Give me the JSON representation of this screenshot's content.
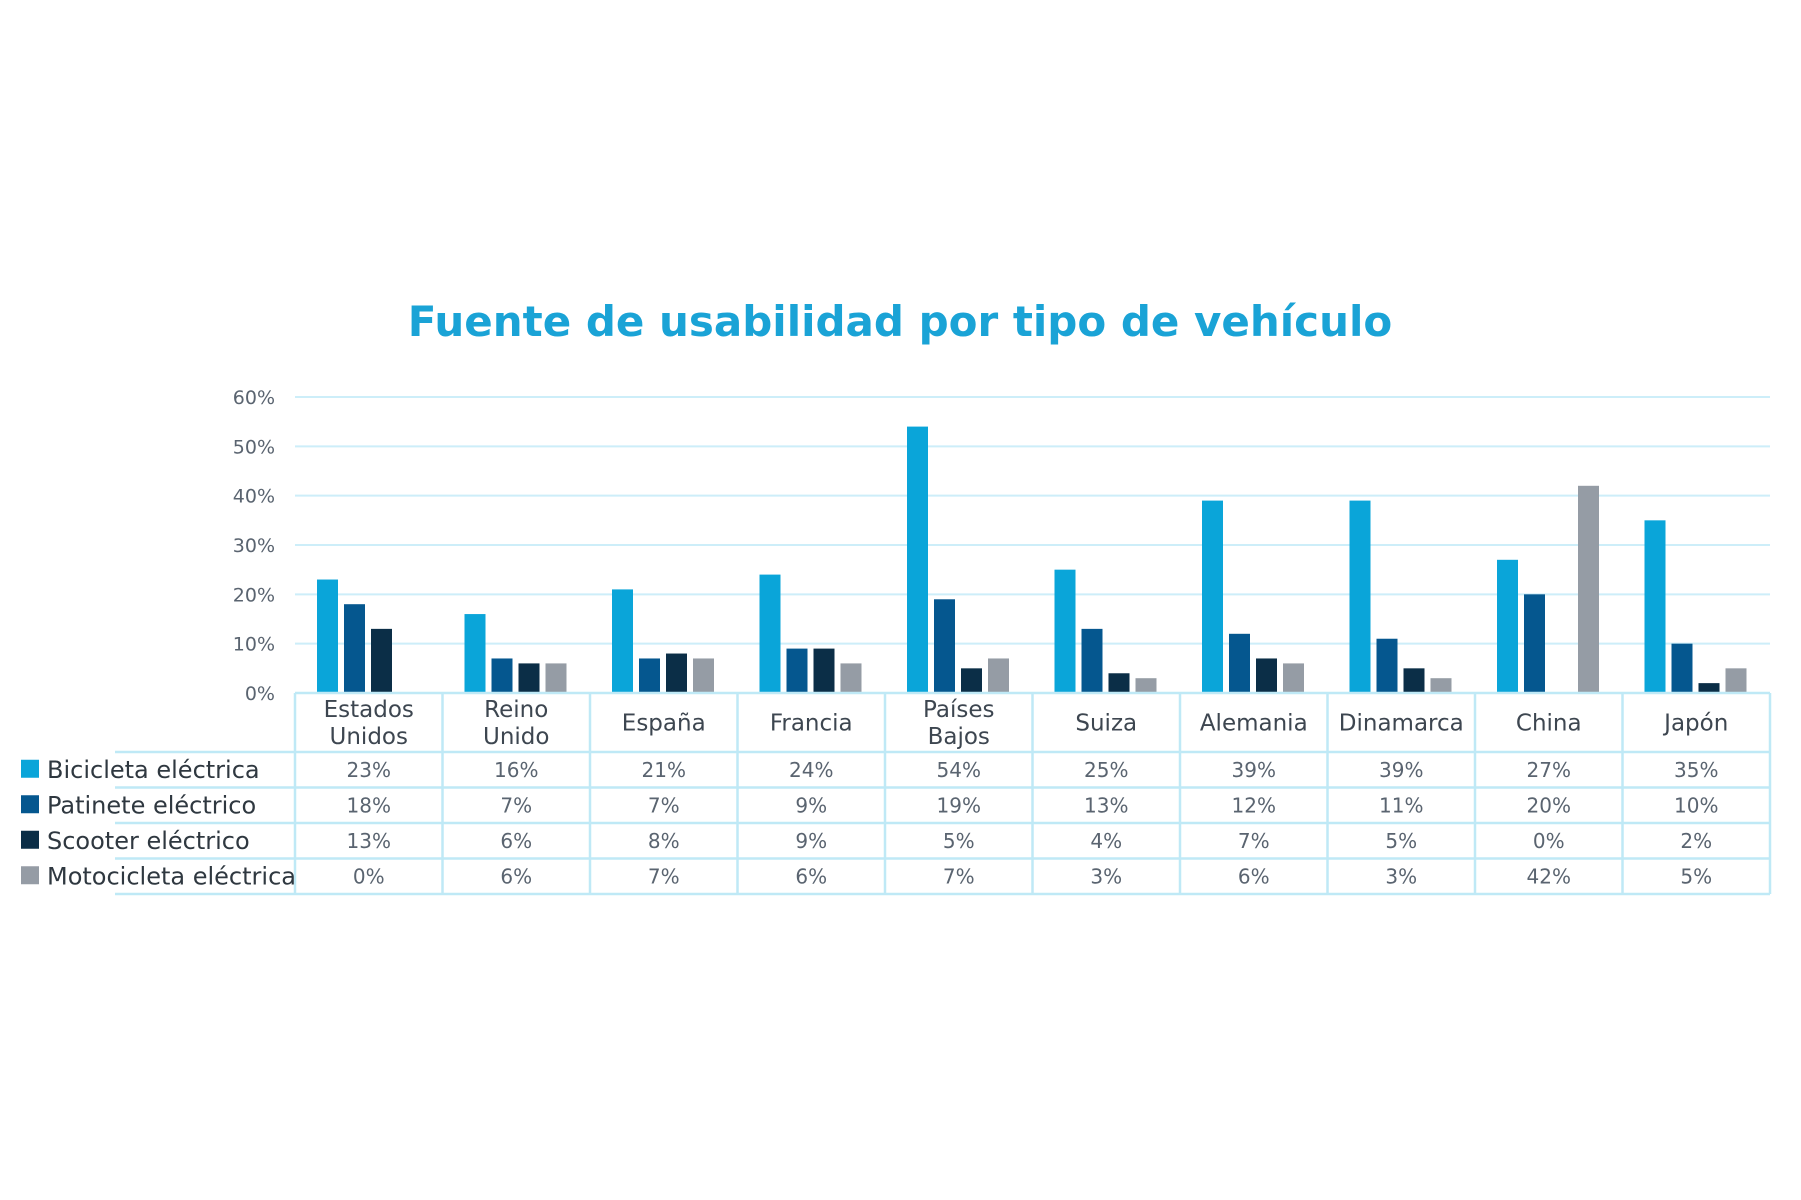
{
  "chart_data": {
    "type": "bar",
    "title": "Fuente de usabilidad por tipo de vehículo",
    "categories": [
      [
        "Estados",
        "Unidos"
      ],
      [
        "Reino",
        "Unido"
      ],
      [
        "España"
      ],
      [
        "Francia"
      ],
      [
        "Países",
        "Bajos"
      ],
      [
        "Suiza"
      ],
      [
        "Alemania"
      ],
      [
        "Dinamarca"
      ],
      [
        "China"
      ],
      [
        "Japón"
      ]
    ],
    "y_ticks": [
      "0%",
      "10%",
      "20%",
      "30%",
      "40%",
      "50%",
      "60%"
    ],
    "ylim": [
      0,
      60
    ],
    "grid": true,
    "legend": "data-table-left",
    "series": [
      {
        "name": "Bicicleta eléctrica",
        "color": "#0aa5d9",
        "values": [
          23,
          16,
          21,
          24,
          54,
          25,
          39,
          39,
          27,
          35
        ],
        "labels": [
          "23%",
          "16%",
          "21%",
          "24%",
          "54%",
          "25%",
          "39%",
          "39%",
          "27%",
          "35%"
        ]
      },
      {
        "name": "Patinete eléctrico",
        "color": "#05578f",
        "values": [
          18,
          7,
          7,
          9,
          19,
          13,
          12,
          11,
          20,
          10
        ],
        "labels": [
          "18%",
          "7%",
          "7%",
          "9%",
          "19%",
          "13%",
          "12%",
          "11%",
          "20%",
          "10%"
        ]
      },
      {
        "name": "Scooter eléctrico",
        "color": "#0b2e47",
        "values": [
          13,
          6,
          8,
          9,
          5,
          4,
          7,
          5,
          0,
          2
        ],
        "labels": [
          "13%",
          "6%",
          "8%",
          "9%",
          "5%",
          "4%",
          "7%",
          "5%",
          "0%",
          "2%"
        ]
      },
      {
        "name": "Motocicleta eléctrica",
        "color": "#959ca5",
        "values": [
          0,
          6,
          7,
          6,
          7,
          3,
          6,
          3,
          42,
          5
        ],
        "labels": [
          "0%",
          "6%",
          "7%",
          "6%",
          "7%",
          "3%",
          "6%",
          "3%",
          "42%",
          "5%"
        ]
      }
    ]
  }
}
